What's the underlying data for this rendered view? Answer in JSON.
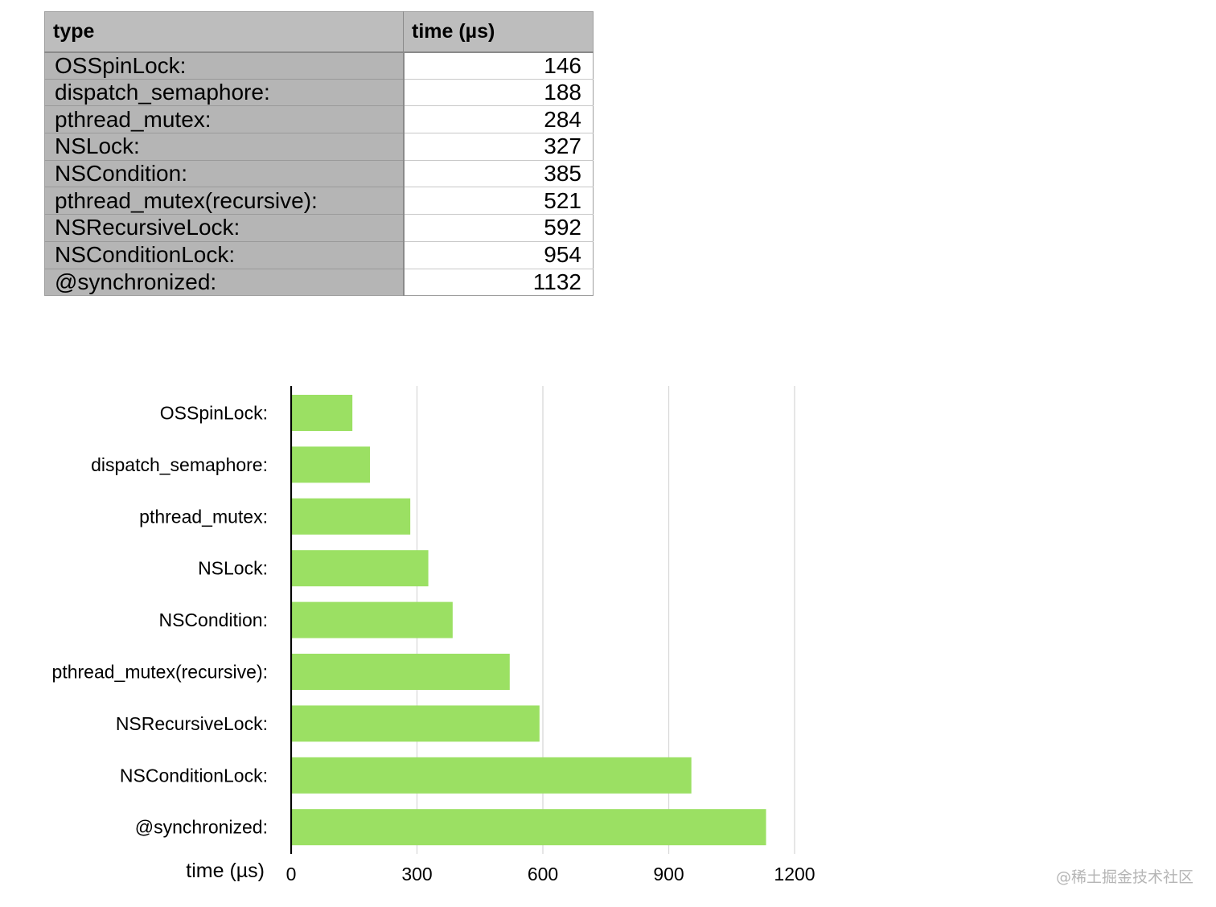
{
  "table": {
    "headers": [
      "type",
      "time (µs)"
    ],
    "rows": [
      {
        "type": "OSSpinLock:",
        "time": "146"
      },
      {
        "type": "dispatch_semaphore:",
        "time": "188"
      },
      {
        "type": "pthread_mutex:",
        "time": "284"
      },
      {
        "type": "NSLock:",
        "time": "327"
      },
      {
        "type": "NSCondition:",
        "time": "385"
      },
      {
        "type": "pthread_mutex(recursive):",
        "time": "521"
      },
      {
        "type": "NSRecursiveLock:",
        "time": "592"
      },
      {
        "type": "NSConditionLock:",
        "time": "954"
      },
      {
        "type": "@synchronized:",
        "time": "1132"
      }
    ]
  },
  "chart_data": {
    "type": "bar",
    "orientation": "horizontal",
    "title": "",
    "categories": [
      "OSSpinLock:",
      "dispatch_semaphore:",
      "pthread_mutex:",
      "NSLock:",
      "NSCondition:",
      "pthread_mutex(recursive):",
      "NSRecursiveLock:",
      "NSConditionLock:",
      "@synchronized:"
    ],
    "values": [
      146,
      188,
      284,
      327,
      385,
      521,
      592,
      954,
      1132
    ],
    "xlabel": "time (µs)",
    "ylabel": "",
    "xlim": [
      0,
      1200
    ],
    "xticks": [
      "0",
      "300",
      "600",
      "900",
      "1200"
    ],
    "grid": "vertical",
    "legend": "none",
    "bar_color": "#9be063"
  },
  "watermark": "@稀土掘金技术社区"
}
